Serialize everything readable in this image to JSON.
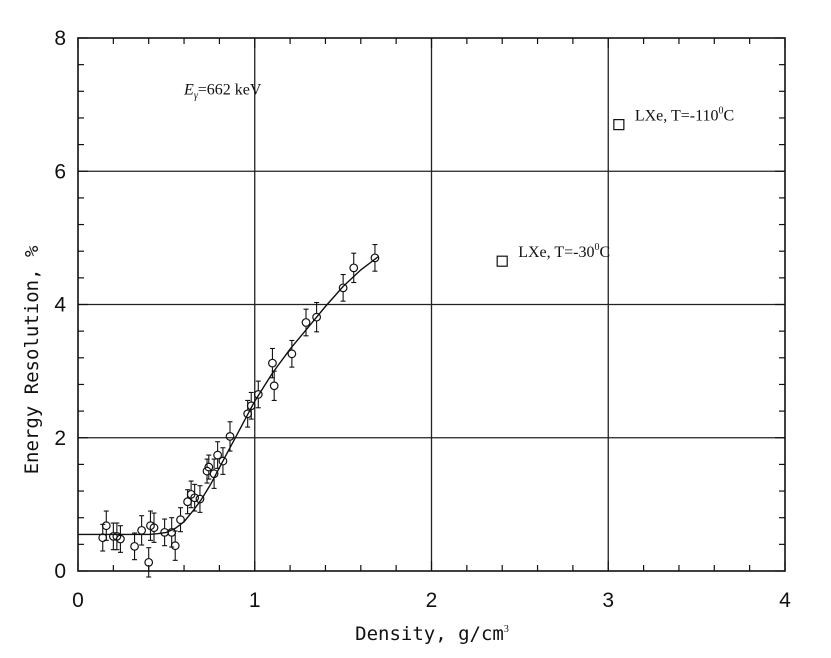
{
  "chart_data": {
    "type": "scatter",
    "title": "",
    "xlabel": "Density, g/cm",
    "xlabel_sup": "3",
    "ylabel": "Energy Resolution, %",
    "xlim": [
      0,
      4
    ],
    "ylim": [
      0,
      8
    ],
    "x_ticks": [
      "0",
      "1",
      "2",
      "3",
      "4"
    ],
    "y_ticks": [
      "0",
      "2",
      "4",
      "6",
      "8"
    ],
    "grid": true,
    "annotation": {
      "symbol": "E",
      "subscript": "γ",
      "text": "=662 keV",
      "x": 0.6,
      "y": 7.15
    },
    "series": [
      {
        "marker": "circle",
        "x": [
          0.14,
          0.16,
          0.2,
          0.22,
          0.24,
          0.32,
          0.36,
          0.4,
          0.41,
          0.43,
          0.49,
          0.53,
          0.55,
          0.58,
          0.62,
          0.64,
          0.66,
          0.69,
          0.73,
          0.74,
          0.77,
          0.79,
          0.82,
          0.86,
          0.96,
          0.98,
          1.02,
          1.1,
          1.11,
          1.21,
          1.29,
          1.35,
          1.5,
          1.56,
          1.68
        ],
        "y": [
          0.5,
          0.68,
          0.52,
          0.52,
          0.48,
          0.37,
          0.61,
          0.13,
          0.68,
          0.65,
          0.58,
          0.58,
          0.38,
          0.77,
          1.04,
          1.15,
          1.1,
          1.08,
          1.5,
          1.56,
          1.46,
          1.74,
          1.65,
          2.02,
          2.36,
          2.48,
          2.65,
          3.12,
          2.78,
          3.26,
          3.73,
          3.81,
          4.25,
          4.55,
          4.7
        ],
        "err": [
          0.2,
          0.22,
          0.2,
          0.2,
          0.2,
          0.2,
          0.22,
          0.22,
          0.22,
          0.22,
          0.2,
          0.22,
          0.22,
          0.18,
          0.18,
          0.2,
          0.2,
          0.2,
          0.18,
          0.18,
          0.22,
          0.2,
          0.2,
          0.22,
          0.2,
          0.2,
          0.2,
          0.22,
          0.22,
          0.2,
          0.2,
          0.22,
          0.2,
          0.22,
          0.2
        ]
      },
      {
        "name": "LXe, T=-30°C",
        "label_base": "LXe, T=-30",
        "label_sup": "0",
        "label_end": "C",
        "marker": "square",
        "x": [
          2.4
        ],
        "y": [
          4.65
        ]
      },
      {
        "name": "LXe, T=-110°C",
        "label_base": "LXe, T=-110",
        "label_sup": "0",
        "label_end": "C",
        "marker": "square",
        "x": [
          3.06
        ],
        "y": [
          6.7
        ]
      }
    ],
    "fit_curve": {
      "x": [
        0.0,
        0.1,
        0.2,
        0.3,
        0.4,
        0.45,
        0.5,
        0.55,
        0.6,
        0.65,
        0.7,
        0.75,
        0.8,
        0.85,
        0.9,
        0.95,
        1.0,
        1.1,
        1.2,
        1.3,
        1.4,
        1.5,
        1.6,
        1.7
      ],
      "y": [
        0.55,
        0.55,
        0.55,
        0.55,
        0.55,
        0.56,
        0.58,
        0.64,
        0.74,
        0.9,
        1.08,
        1.3,
        1.55,
        1.8,
        2.05,
        2.3,
        2.55,
        2.97,
        3.33,
        3.65,
        3.97,
        4.27,
        4.52,
        4.72
      ]
    }
  }
}
